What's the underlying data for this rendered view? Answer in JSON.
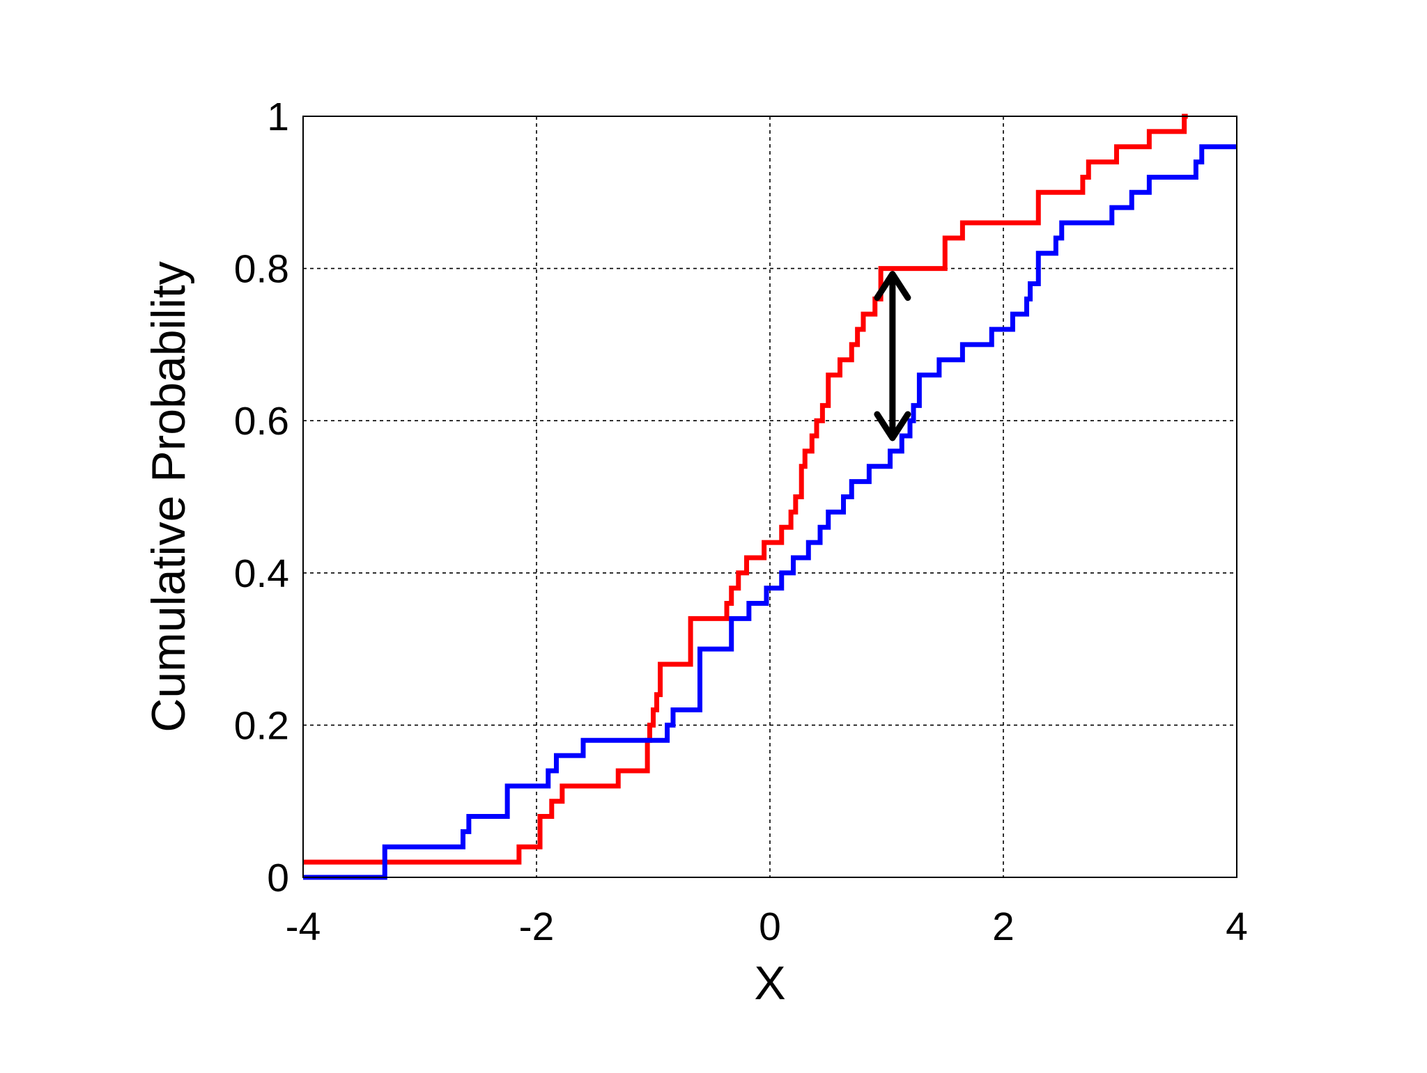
{
  "chart_data": {
    "type": "line",
    "subtype": "step (empirical CDF)",
    "title": "",
    "xlabel": "X",
    "ylabel": "Cumulative Probability",
    "xlim": [
      -4,
      4
    ],
    "ylim": [
      0,
      1
    ],
    "xticks": [
      "-4",
      "-2",
      "0",
      "2",
      "4"
    ],
    "yticks": [
      "0",
      "0.2",
      "0.4",
      "0.6",
      "0.8",
      "1"
    ],
    "grid": true,
    "grid_style": "dotted",
    "series": [
      {
        "color": "#ff0000",
        "x": [
          -4.0,
          -2.15,
          -1.97,
          -1.87,
          -1.78,
          -1.3,
          -1.05,
          -1.03,
          -1.0,
          -0.97,
          -0.94,
          -0.68,
          -0.37,
          -0.33,
          -0.27,
          -0.2,
          -0.05,
          0.1,
          0.18,
          0.22,
          0.27,
          0.3,
          0.36,
          0.4,
          0.45,
          0.5,
          0.6,
          0.7,
          0.75,
          0.8,
          0.9,
          0.95,
          1.5,
          1.65,
          2.3,
          2.68,
          2.73,
          2.97,
          3.25,
          3.55,
          3.58
        ],
        "y": [
          0.02,
          0.04,
          0.08,
          0.1,
          0.12,
          0.14,
          0.18,
          0.2,
          0.22,
          0.24,
          0.28,
          0.34,
          0.36,
          0.38,
          0.4,
          0.42,
          0.44,
          0.46,
          0.48,
          0.5,
          0.54,
          0.56,
          0.58,
          0.6,
          0.62,
          0.66,
          0.68,
          0.7,
          0.72,
          0.74,
          0.76,
          0.8,
          0.84,
          0.86,
          0.9,
          0.92,
          0.94,
          0.96,
          0.98,
          1.0,
          1.0
        ]
      },
      {
        "color": "#0000ff",
        "x": [
          -4.0,
          -3.3,
          -2.63,
          -2.58,
          -2.25,
          -1.9,
          -1.83,
          -1.6,
          -0.88,
          -0.83,
          -0.6,
          -0.33,
          -0.18,
          -0.03,
          0.1,
          0.2,
          0.33,
          0.43,
          0.5,
          0.63,
          0.7,
          0.85,
          1.03,
          1.13,
          1.2,
          1.23,
          1.28,
          1.45,
          1.65,
          1.9,
          2.08,
          2.2,
          2.23,
          2.3,
          2.45,
          2.5,
          2.63,
          2.93,
          3.1,
          3.25,
          3.65,
          3.7,
          4.0
        ],
        "y": [
          0.0,
          0.04,
          0.06,
          0.08,
          0.12,
          0.14,
          0.16,
          0.18,
          0.2,
          0.22,
          0.3,
          0.34,
          0.36,
          0.38,
          0.4,
          0.42,
          0.44,
          0.46,
          0.48,
          0.5,
          0.52,
          0.54,
          0.56,
          0.58,
          0.6,
          0.62,
          0.66,
          0.68,
          0.7,
          0.72,
          0.74,
          0.76,
          0.78,
          0.82,
          0.84,
          0.86,
          0.86,
          0.88,
          0.9,
          0.92,
          0.94,
          0.96,
          0.96
        ]
      }
    ],
    "annotations": [
      {
        "type": "double-arrow",
        "color": "#000000",
        "x": 1.05,
        "y_from": 0.8,
        "y_to": 0.57,
        "description": "maximum vertical distance between the two curves"
      }
    ]
  }
}
